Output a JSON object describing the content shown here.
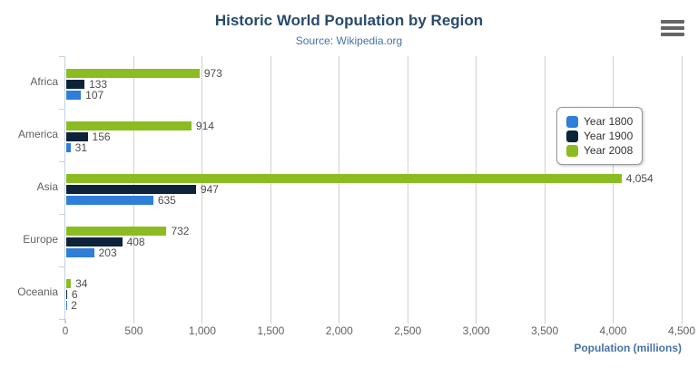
{
  "chart_data": {
    "type": "bar",
    "title": "Historic World Population by Region",
    "subtitle": "Source: Wikipedia.org",
    "categories": [
      "Africa",
      "America",
      "Asia",
      "Europe",
      "Oceania"
    ],
    "series": [
      {
        "name": "Year 1800",
        "color": "#2f7ed8",
        "values": [
          107,
          31,
          635,
          203,
          2
        ]
      },
      {
        "name": "Year 1900",
        "color": "#0d233a",
        "values": [
          133,
          156,
          947,
          408,
          6
        ]
      },
      {
        "name": "Year 2008",
        "color": "#8bbc21",
        "values": [
          973,
          914,
          4054,
          732,
          34
        ]
      }
    ],
    "bar_order_top_to_bottom": [
      "Year 2008",
      "Year 1900",
      "Year 1800"
    ],
    "xlabel": "Population (millions)",
    "ylabel": "",
    "xlim": [
      0,
      4500
    ],
    "xticks": [
      0,
      500,
      1000,
      1500,
      2000,
      2500,
      3000,
      3500,
      4000,
      4500
    ],
    "grid": true,
    "legend_position": "right",
    "data_labels_visible": true
  },
  "icons": {
    "export_menu": "hamburger-menu"
  },
  "colors": {
    "background": "#ffffff",
    "title": "#274b6d",
    "subtitle": "#4572a7",
    "axis_title": "#4572a7",
    "labels": "#606060",
    "data_label": "#4d4d4d",
    "gridline": "#d0d0d0",
    "axis_line": "#c0d0e0",
    "legend_border": "#999999",
    "legend_text": "#333333",
    "menu_icon": "#666666"
  }
}
